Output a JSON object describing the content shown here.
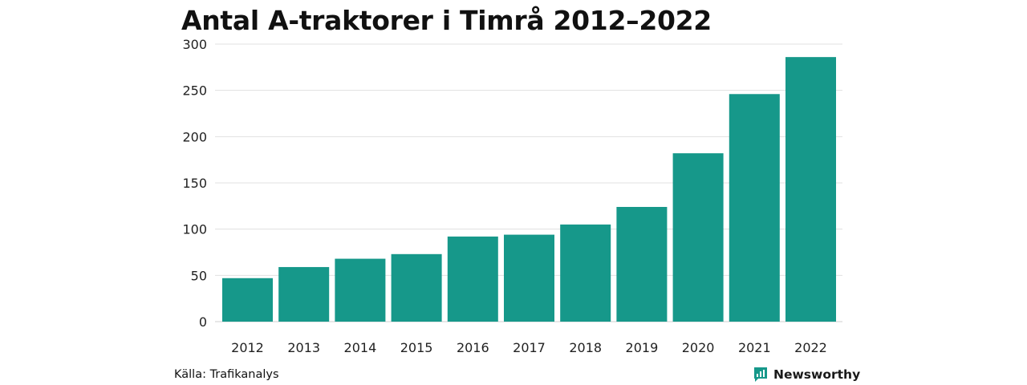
{
  "chart_data": {
    "type": "bar",
    "title": "Antal A-traktorer i Timrå 2012–2022",
    "categories": [
      "2012",
      "2013",
      "2014",
      "2015",
      "2016",
      "2017",
      "2018",
      "2019",
      "2020",
      "2021",
      "2022"
    ],
    "values": [
      47,
      59,
      68,
      73,
      92,
      94,
      105,
      124,
      182,
      246,
      286
    ],
    "ylim": [
      0,
      300
    ],
    "yticks": [
      0,
      50,
      100,
      150,
      200,
      250,
      300
    ],
    "grid": true,
    "bar_color": "#16988a",
    "grid_color": "#e0e0e0"
  },
  "footer": {
    "source": "Källa: Trafikanalys",
    "brand": "Newsworthy",
    "brand_icon": "newsworthy-logo-icon",
    "brand_color": "#16988a"
  }
}
